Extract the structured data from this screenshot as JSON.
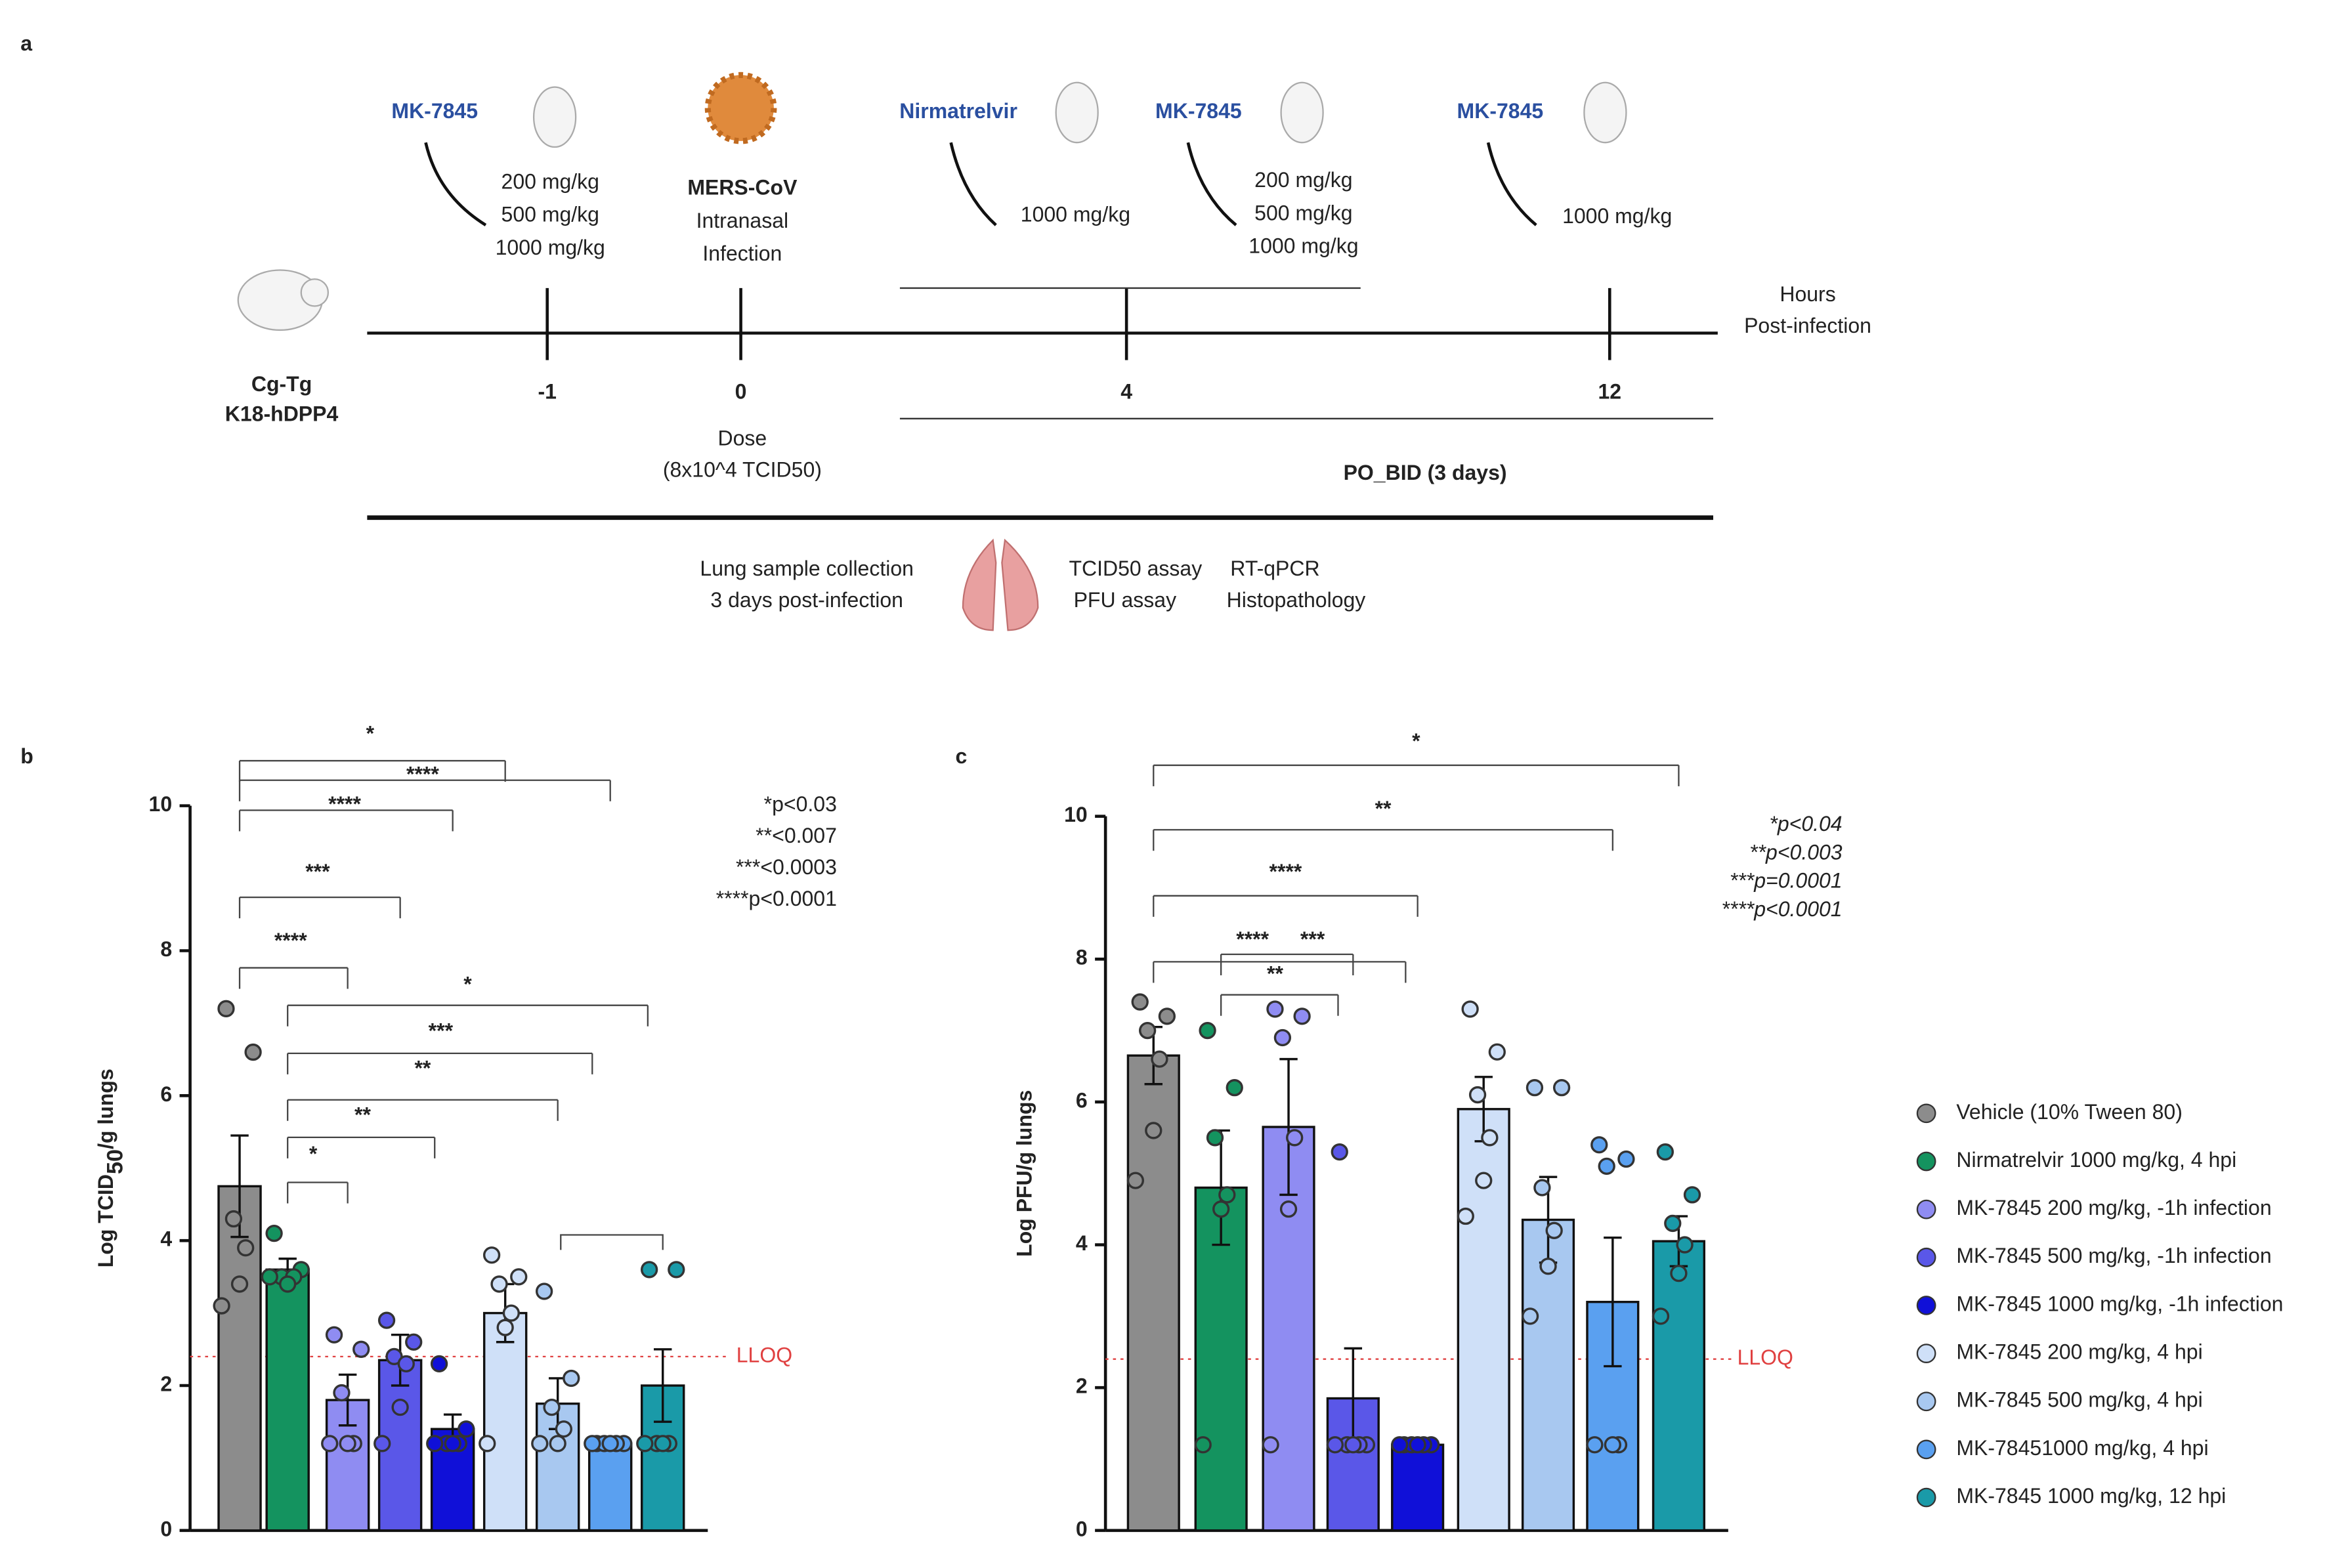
{
  "panel_a": {
    "label": "a",
    "mouse_label": [
      "Cg-Tg",
      "K18-hDPP4"
    ],
    "axis_label": [
      "Hours",
      "Post-infection"
    ],
    "timepoints": [
      {
        "tick": "-1",
        "drug": "MK-7845",
        "doses": [
          "200 mg/kg",
          "500 mg/kg",
          "1000 mg/kg"
        ]
      },
      {
        "tick": "0",
        "event": [
          "MERS-CoV",
          "Intranasal",
          "Infection"
        ],
        "dose": [
          "Dose",
          "(8x10^4 TCID50)"
        ]
      },
      {
        "tick": "4",
        "drug": "Nirmatrelvir",
        "doses": [
          "1000 mg/kg"
        ],
        "drug2": "MK-7845",
        "doses2": [
          "200 mg/kg",
          "500 mg/kg",
          "1000 mg/kg"
        ]
      },
      {
        "tick": "12",
        "drug": "MK-7845",
        "doses": [
          "1000 mg/kg"
        ]
      }
    ],
    "regimen": "PO_BID (3 days)",
    "collection": [
      "Lung sample collection",
      "3 days post-infection"
    ],
    "assays": [
      "TCID50 assay",
      "PFU assay",
      "RT-qPCR",
      "Histopathology"
    ]
  },
  "chart_data": [
    {
      "type": "bar",
      "label": "b",
      "ylabel": {
        "prefix": "Log TCID",
        "sub": "50",
        "suffix": "/g lungs"
      },
      "ylim": [
        0,
        10
      ],
      "yticks": [
        0,
        2,
        4,
        6,
        8,
        10
      ],
      "lloq": 2.4,
      "lloq_label": "LLOQ",
      "significance": [
        "*",
        "****",
        "****",
        "***",
        "****",
        "*",
        "***",
        "**",
        "**",
        "*"
      ],
      "pvalue_key": [
        "*p<0.03",
        "**<0.007",
        "***<0.0003",
        "****p<0.0001"
      ],
      "series": [
        {
          "color": "#8c8c8c",
          "values": [
            4.75
          ],
          "errors": [
            0.7
          ],
          "points": [
            7.2,
            6.6,
            4.3,
            3.9,
            3.4,
            3.1
          ]
        },
        {
          "color": "#14935f",
          "values": [
            3.6
          ],
          "errors": [
            0.15
          ],
          "points": [
            4.1,
            3.6,
            3.5,
            3.5,
            3.4,
            3.5
          ]
        },
        {
          "color": "#8f8cf2",
          "values": [
            1.8
          ],
          "errors": [
            0.35
          ],
          "points": [
            2.7,
            2.5,
            1.9,
            1.2,
            1.2,
            1.2
          ]
        },
        {
          "color": "#5a57e8",
          "values": [
            2.35
          ],
          "errors": [
            0.35
          ],
          "points": [
            2.9,
            2.6,
            2.4,
            2.3,
            1.7,
            1.2
          ]
        },
        {
          "color": "#1010d8",
          "values": [
            1.4
          ],
          "errors": [
            0.2
          ],
          "points": [
            2.3,
            1.4,
            1.2,
            1.2,
            1.2,
            1.2
          ]
        },
        {
          "color": "#cfe0f8",
          "values": [
            3.0
          ],
          "errors": [
            0.4
          ],
          "points": [
            3.8,
            3.5,
            3.4,
            3.0,
            2.8,
            1.2
          ]
        },
        {
          "color": "#a8c8f0",
          "values": [
            1.75
          ],
          "errors": [
            0.35
          ],
          "points": [
            3.3,
            2.1,
            1.7,
            1.4,
            1.2,
            1.2
          ]
        },
        {
          "color": "#5aa0f0",
          "values": [
            1.2
          ],
          "errors": [
            0
          ],
          "points": [
            1.2,
            1.2,
            1.2,
            1.2,
            1.2,
            1.2
          ]
        },
        {
          "color": "#1a9aa8",
          "values": [
            2.0
          ],
          "errors": [
            0.5
          ],
          "points": [
            3.6,
            3.6,
            1.2,
            1.2,
            1.2,
            1.2
          ]
        }
      ]
    },
    {
      "type": "bar",
      "label": "c",
      "ylabel": "Log PFU/g lungs",
      "ylim": [
        0,
        10
      ],
      "yticks": [
        0,
        2,
        4,
        6,
        8,
        10
      ],
      "lloq": 2.4,
      "lloq_label": "LLOQ",
      "significance": [
        "*",
        "**",
        "****",
        "****",
        "***",
        "**"
      ],
      "pvalue_key": [
        "*p<0.04",
        "**p<0.003",
        "***p=0.0001",
        "****p<0.0001"
      ],
      "series": [
        {
          "name": "Vehicle (10% Tween 80)",
          "color": "#8c8c8c",
          "values": [
            6.65
          ],
          "errors": [
            0.4
          ],
          "points": [
            7.4,
            7.2,
            7.0,
            6.6,
            5.6,
            4.9
          ]
        },
        {
          "name": "Nirmatrelvir 1000 mg/kg, 4 hpi",
          "color": "#14935f",
          "values": [
            4.8
          ],
          "errors": [
            0.8
          ],
          "points": [
            7.0,
            6.2,
            5.5,
            4.7,
            4.5,
            1.2
          ]
        },
        {
          "name": "MK-7845 200 mg/kg, -1h infection",
          "color": "#8f8cf2",
          "values": [
            5.65
          ],
          "errors": [
            0.95
          ],
          "points": [
            7.3,
            7.2,
            6.9,
            5.5,
            4.5,
            1.2
          ]
        },
        {
          "name": "MK-7845 500 mg/kg, -1h infection",
          "color": "#5a57e8",
          "values": [
            1.85
          ],
          "errors": [
            0.7
          ],
          "points": [
            5.3,
            1.2,
            1.2,
            1.2,
            1.2,
            1.2
          ]
        },
        {
          "name": "MK-7845 1000 mg/kg, -1h infection",
          "color": "#1010d8",
          "values": [
            1.2
          ],
          "errors": [
            0
          ],
          "points": [
            1.2,
            1.2,
            1.2,
            1.2,
            1.2,
            1.2
          ]
        },
        {
          "name": "MK-7845 200 mg/kg, 4 hpi",
          "color": "#cfe0f8",
          "values": [
            5.9
          ],
          "errors": [
            0.45
          ],
          "points": [
            7.3,
            6.7,
            6.1,
            5.5,
            4.9,
            4.4
          ]
        },
        {
          "name": "MK-7845 500 mg/kg, 4 hpi",
          "color": "#a8c8f0",
          "values": [
            4.35
          ],
          "errors": [
            0.6
          ],
          "points": [
            6.2,
            6.2,
            4.8,
            4.2,
            3.7,
            3.0
          ]
        },
        {
          "name": "MK-78451000 mg/kg, 4 hpi",
          "color": "#5aa0f0",
          "values": [
            3.2
          ],
          "errors": [
            0.9
          ],
          "points": [
            5.4,
            5.2,
            5.1,
            1.2,
            1.2,
            1.2
          ]
        },
        {
          "name": "MK-7845 1000 mg/kg, 12 hpi",
          "color": "#1a9aa8",
          "values": [
            4.05
          ],
          "errors": [
            0.35
          ],
          "points": [
            5.3,
            4.7,
            4.3,
            4.0,
            3.6,
            3.0
          ]
        }
      ]
    }
  ]
}
